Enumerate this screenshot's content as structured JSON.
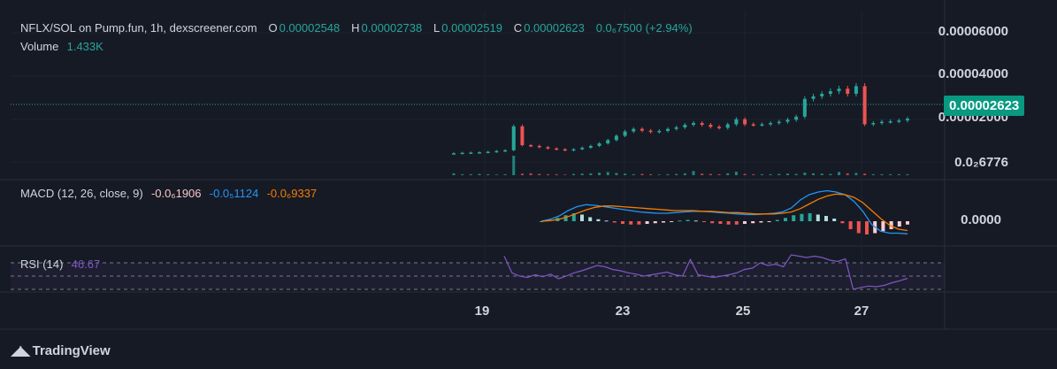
{
  "header": {
    "symbol": "NFLX/SOL on Pump.fun, 1h, dexscreener.com",
    "o_label": "O",
    "o_value": "0.00002548",
    "h_label": "H",
    "h_value": "0.00002738",
    "l_label": "L",
    "l_value": "0.00002519",
    "c_label": "C",
    "c_value": "0.00002623",
    "change": "0.0₆7500 (+2.94%)"
  },
  "volume": {
    "label": "Volume",
    "value": "1.433K"
  },
  "macd": {
    "label": "MACD (12, 26, close, 9)",
    "hist_value": "-0.0₆1906",
    "macd_value": "-0.0₅1124",
    "signal_value": "-0.0₆9337",
    "axis_label": "0.0000"
  },
  "rsi": {
    "label": "RSI (14)",
    "value": "46.67"
  },
  "price_axis": [
    "0.00006000",
    "0.00004000",
    "0.00002000",
    "0.0₂6776"
  ],
  "last_price": "0.00002623",
  "date_axis": [
    "19",
    "23",
    "25",
    "27"
  ],
  "brand": "TradingView",
  "colors": {
    "up": "#26a69a",
    "down": "#ef5350",
    "macd": "#2962ff",
    "signal": "#f57c00",
    "rsi": "#7e57c2",
    "bg": "#161a25"
  },
  "chart_data": {
    "type": "candlestick",
    "interval": "1h",
    "y_range": [
      6.77e-06,
      6e-05
    ],
    "price_ticks": [
      6e-05,
      4e-05,
      2e-05
    ],
    "series": [
      {
        "name": "price_close",
        "values": [
          1.26e-05,
          1.28e-05,
          1.29e-05,
          1.3e-05,
          1.32e-05,
          1.35e-05,
          1.38e-05,
          2.32e-05,
          1.58e-05,
          1.55e-05,
          1.5e-05,
          1.45e-05,
          1.42e-05,
          1.38e-05,
          1.42e-05,
          1.48e-05,
          1.55e-05,
          1.65e-05,
          1.78e-05,
          1.95e-05,
          2.12e-05,
          2.22e-05,
          2.15e-05,
          2.1e-05,
          2.14e-05,
          2.22e-05,
          2.28e-05,
          2.38e-05,
          2.45e-05,
          2.38e-05,
          2.3e-05,
          2.26e-05,
          2.4e-05,
          2.6e-05,
          2.4e-05,
          2.38e-05,
          2.4e-05,
          2.45e-05,
          2.5e-05,
          2.58e-05,
          2.7e-05,
          3.4e-05,
          3.5e-05,
          3.6e-05,
          3.7e-05,
          3.8e-05,
          3.6e-05,
          3.9e-05,
          2.4e-05,
          2.45e-05,
          2.5e-05,
          2.52e-05,
          2.55e-05,
          2.62e-05
        ]
      },
      {
        "name": "volume",
        "values": [
          0.6,
          0.3,
          0.3,
          0.4,
          0.3,
          0.2,
          0.3,
          6.0,
          0.5,
          0.6,
          0.4,
          0.3,
          0.3,
          0.2,
          0.4,
          0.5,
          0.6,
          0.8,
          1.0,
          0.7,
          0.5,
          0.3,
          0.4,
          0.3,
          0.2,
          0.3,
          0.4,
          0.6,
          1.3,
          0.5,
          0.4,
          0.3,
          0.6,
          1.1,
          0.4,
          0.3,
          0.3,
          0.3,
          0.4,
          0.5,
          0.4,
          0.8,
          0.6,
          0.5,
          0.4,
          1.0,
          0.6,
          0.7,
          0.5,
          0.3,
          0.3,
          0.3,
          0.3,
          0.3
        ]
      },
      {
        "name": "macd_histogram",
        "values": [
          0,
          0.2,
          0.5,
          0.9,
          1.2,
          1.0,
          0.6,
          0.3,
          0.1,
          -0.2,
          -0.4,
          -0.5,
          -0.5,
          -0.4,
          -0.3,
          -0.2,
          -0.1,
          0.1,
          0.2,
          0.1,
          -0.1,
          -0.3,
          -0.4,
          -0.5,
          -0.5,
          -0.4,
          -0.3,
          -0.2,
          -0.1,
          0.2,
          0.5,
          0.9,
          1.1,
          1.2,
          1.0,
          0.8,
          0.4,
          -0.3,
          -1.2,
          -1.8,
          -2.0,
          -1.8,
          -1.5,
          -1.2,
          -0.8,
          -0.5
        ]
      },
      {
        "name": "macd",
        "values": [
          0,
          0.3,
          0.8,
          1.6,
          2.2,
          2.5,
          2.4,
          2.2,
          2.0,
          1.8,
          1.6,
          1.4,
          1.3,
          1.2,
          1.2,
          1.3,
          1.4,
          1.5,
          1.5,
          1.4,
          1.3,
          1.2,
          1.1,
          1.0,
          1.0,
          1.1,
          1.2,
          1.4,
          2.0,
          3.2,
          4.0,
          4.4,
          4.6,
          4.4,
          4.0,
          3.0,
          1.5,
          -0.5,
          -1.5,
          -1.8,
          -1.8,
          -1.9
        ]
      },
      {
        "name": "signal",
        "values": [
          0,
          0.1,
          0.3,
          0.7,
          1.2,
          1.7,
          2.1,
          2.3,
          2.3,
          2.2,
          2.1,
          2.0,
          1.9,
          1.8,
          1.7,
          1.6,
          1.6,
          1.6,
          1.5,
          1.5,
          1.4,
          1.3,
          1.3,
          1.2,
          1.1,
          1.1,
          1.1,
          1.2,
          1.4,
          1.9,
          2.6,
          3.3,
          3.8,
          4.1,
          4.0,
          3.6,
          2.8,
          1.6,
          0.4,
          -0.6,
          -1.2,
          -1.4
        ]
      },
      {
        "name": "rsi",
        "values": [
          80,
          55,
          50,
          48,
          52,
          49,
          53,
          46,
          50,
          55,
          58,
          62,
          66,
          64,
          60,
          58,
          55,
          53,
          50,
          52,
          54,
          56,
          52,
          50,
          75,
          52,
          50,
          48,
          50,
          52,
          55,
          60,
          62,
          70,
          66,
          68,
          64,
          82,
          80,
          78,
          80,
          78,
          74,
          72,
          76,
          30,
          33,
          35,
          34,
          36,
          40,
          43,
          46.67
        ]
      }
    ]
  }
}
